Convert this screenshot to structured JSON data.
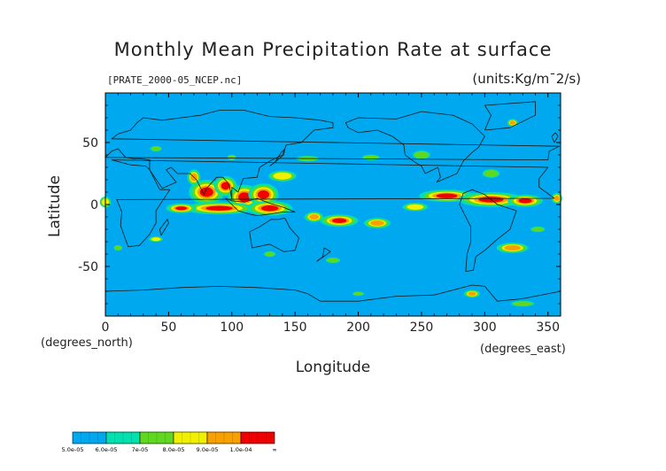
{
  "chart_data": {
    "type": "heatmap",
    "title": "Monthly Mean Precipitation Rate at surface",
    "subtitle_file": "[PRATE_2000-05_NCEP.nc]",
    "units": "(units:Kg/m¯2/s)",
    "xlabel": "Longitude",
    "ylabel": "Latitude",
    "x_unit_note": "(degrees_east)",
    "y_unit_note": "(degrees_north)",
    "xlim": [
      0,
      360
    ],
    "ylim": [
      -90,
      90
    ],
    "xticks": [
      "0",
      "50",
      "100",
      "150",
      "200",
      "250",
      "300",
      "350"
    ],
    "yticks": [
      "-50",
      "0",
      "50"
    ],
    "background_level": "5.0e-05",
    "colorbar": {
      "labels": [
        "5.0e-05",
        "6.0e-05",
        "7e-05",
        "8.0e-05",
        "9.0e-05",
        "1.0e-04",
        "∞"
      ],
      "colors": [
        "#00a8f0",
        "#00e0b0",
        "#60d820",
        "#f0f000",
        "#f8a000",
        "#f00000"
      ]
    },
    "regions": [
      {
        "level": "1.0e-04",
        "lon": [
          45,
          150
        ],
        "lat": [
          -12,
          30
        ]
      },
      {
        "level": "1.0e-04",
        "lon": [
          250,
          350
        ],
        "lat": [
          -5,
          12
        ]
      },
      {
        "level": "1.0e-04",
        "lon": [
          155,
          235
        ],
        "lat": [
          -20,
          -5
        ]
      },
      {
        "level": "9.0e-05",
        "lon": [
          300,
          345
        ],
        "lat": [
          -40,
          -30
        ]
      }
    ]
  }
}
